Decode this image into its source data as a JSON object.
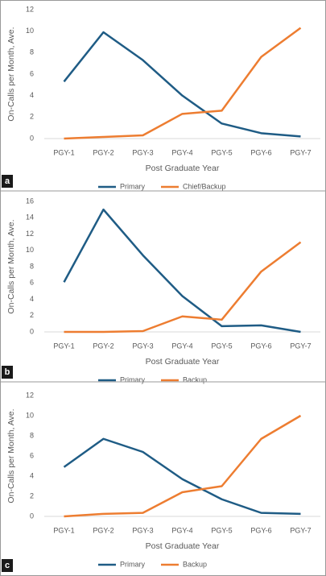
{
  "chart_data": [
    {
      "type": "line",
      "panel_label": "a",
      "y_label": "On-Calls per Month, Ave.",
      "x_label": "Post Graduate Year",
      "categories": [
        "PGY-1",
        "PGY-2",
        "PGY-3",
        "PGY-4",
        "PGY-5",
        "PGY-6",
        "PGY-7"
      ],
      "series": [
        {
          "name": "Primary",
          "color": "#1f5c85",
          "values": [
            5.3,
            9.9,
            7.3,
            4.0,
            1.4,
            0.5,
            0.2
          ]
        },
        {
          "name": "Chief/Backup",
          "color": "#ed7d31",
          "values": [
            0,
            0.15,
            0.3,
            2.3,
            2.6,
            7.6,
            10.3
          ]
        }
      ],
      "ylim": [
        0,
        12
      ],
      "yticks": [
        0,
        2,
        4,
        6,
        8,
        10,
        12
      ]
    },
    {
      "type": "line",
      "panel_label": "b",
      "y_label": "On-Calls per Month, Ave.",
      "x_label": "Post Graduate Year",
      "categories": [
        "PGY-1",
        "PGY-2",
        "PGY-3",
        "PGY-4",
        "PGY-5",
        "PGY-6",
        "PGY-7"
      ],
      "series": [
        {
          "name": "Primary",
          "color": "#1f5c85",
          "values": [
            6.1,
            15.0,
            9.4,
            4.4,
            0.7,
            0.8,
            0.0
          ]
        },
        {
          "name": "Backup",
          "color": "#ed7d31",
          "values": [
            0,
            0,
            0.1,
            1.9,
            1.5,
            7.4,
            11.0
          ]
        }
      ],
      "ylim": [
        0,
        16
      ],
      "yticks": [
        0,
        2,
        4,
        6,
        8,
        10,
        12,
        14,
        16
      ]
    },
    {
      "type": "line",
      "panel_label": "c",
      "y_label": "On-Calls per Month, Ave.",
      "x_label": "Post Graduate Year",
      "categories": [
        "PGY-1",
        "PGY-2",
        "PGY-3",
        "PGY-4",
        "PGY-5",
        "PGY-6",
        "PGY-7"
      ],
      "series": [
        {
          "name": "Primary",
          "color": "#1f5c85",
          "values": [
            4.9,
            7.7,
            6.4,
            3.7,
            1.7,
            0.35,
            0.25
          ]
        },
        {
          "name": "Backup",
          "color": "#ed7d31",
          "values": [
            0,
            0.25,
            0.35,
            2.4,
            3.0,
            7.7,
            10.0
          ]
        }
      ],
      "ylim": [
        0,
        12
      ],
      "yticks": [
        0,
        2,
        4,
        6,
        8,
        10,
        12
      ]
    }
  ]
}
